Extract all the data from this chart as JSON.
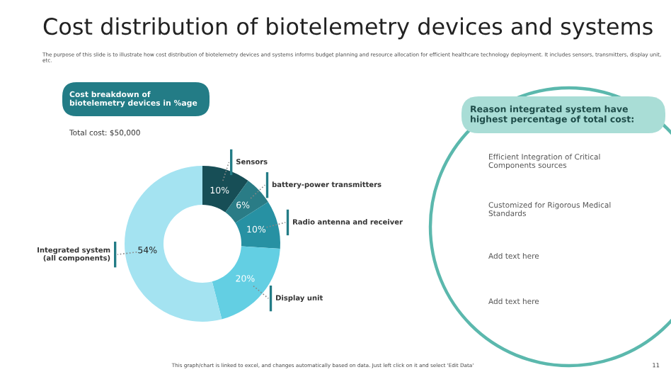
{
  "chart_data": {
    "type": "donut",
    "title": "Cost distribution of biotelemetry devices and systems",
    "subtitle": "The purpose of this slide is to illustrate how cost distribution of biotelemetry devices and systems informs budget planning and resource allocation for efficient healthcare technology deployment. It includes sensors, transmitters, display unit, etc.",
    "categories": [
      "Sensors",
      "battery-power transmitters",
      "Radio antenna and receiver",
      "Display unit",
      "Integrated system\n(all components)"
    ],
    "values": [
      10,
      6,
      10,
      20,
      54
    ],
    "value_labels": [
      "10%",
      "6%",
      "10%",
      "20%",
      "54%"
    ],
    "colors": [
      "#174e56",
      "#2a7c86",
      "#2791a3",
      "#63cfe3",
      "#a4e3f1"
    ],
    "legend": false,
    "annotations": [
      "Cost breakdown of\nbiotelemetry devices in %age",
      "Total cost: $50,000",
      "Reason integrated system have\nhighest percentage of total cost:",
      "Efficient Integration of Critical\nComponents sources",
      "Customized for Rigorous Medical\nStandards",
      "Add text here",
      "Add text here",
      "This graph/chart is linked to excel, and changes automatically based on data. Just left click on it and select 'Edit Data'",
      "11"
    ]
  }
}
